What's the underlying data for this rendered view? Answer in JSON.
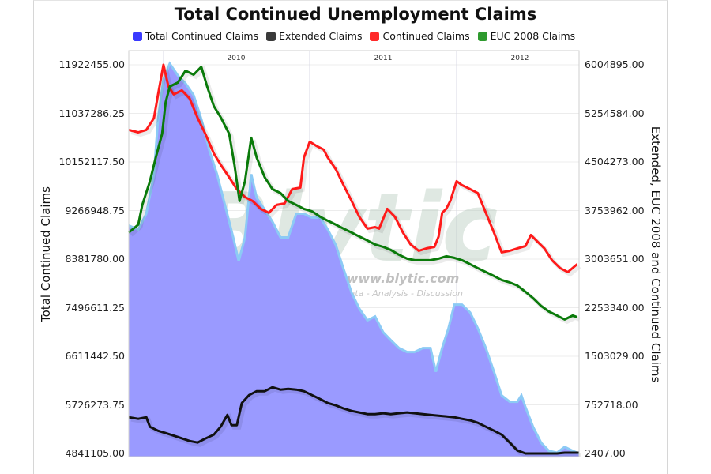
{
  "title": "Total Continued Unemployment Claims",
  "legend": [
    {
      "label": "Total Continued Claims",
      "color": "#3a3aff"
    },
    {
      "label": "Extended Claims",
      "color": "#3a3a3a"
    },
    {
      "label": "Continued Claims",
      "color": "#ff2a2a"
    },
    {
      "label": "EUC 2008 Claims",
      "color": "#2e9a2e"
    }
  ],
  "left_axis": {
    "label": "Total Continued Claims",
    "ticks": [
      "11922455.00",
      "11037286.25",
      "10152117.50",
      "9266948.75",
      "8381780.00",
      "7496611.25",
      "6611442.50",
      "5726273.75",
      "4841105.00"
    ]
  },
  "right_axis": {
    "label": "Extended, EUC 2008 and Continued Claims",
    "ticks": [
      "6004895.00",
      "5254584.00",
      "4504273.00",
      "3753962.00",
      "3003651.00",
      "2253340.00",
      "1503029.00",
      "752718.00",
      "2407.00"
    ]
  },
  "x_labels": [
    {
      "label": "2010",
      "x": 299
    },
    {
      "label": "2011",
      "x": 485
    },
    {
      "label": "2012",
      "x": 658
    }
  ],
  "watermark": {
    "text": "Blytic",
    "url": "www.blytic.com",
    "tagline": "Data - Analysis - Discussion"
  },
  "chart_data": {
    "type": "line",
    "title": "Total Continued Unemployment Claims",
    "xlabel": "",
    "ylabel": "Total Continued Claims",
    "ylabel_right": "Extended, EUC 2008 and Continued Claims",
    "ylim": [
      4841105,
      11922455
    ],
    "ylim_right": [
      2407,
      6004895
    ],
    "x_range": [
      "2009-10",
      "2012-06"
    ],
    "x_ticks": [
      "2010",
      "2011",
      "2012"
    ],
    "grid": true,
    "legend_position": "top",
    "series": [
      {
        "name": "Total Continued Claims",
        "type": "area",
        "axis": "left",
        "color": "#9a9aff",
        "points": [
          [
            0,
            8993000
          ],
          [
            0.021,
            8921000
          ],
          [
            0.039,
            9209000
          ],
          [
            0.056,
            9928000
          ],
          [
            0.065,
            10936000
          ],
          [
            0.077,
            11656000
          ],
          [
            0.091,
            11944000
          ],
          [
            0.109,
            11728000
          ],
          [
            0.126,
            11584000
          ],
          [
            0.144,
            11368000
          ],
          [
            0.161,
            10936000
          ],
          [
            0.179,
            10361000
          ],
          [
            0.196,
            9929000
          ],
          [
            0.214,
            9353000
          ],
          [
            0.232,
            8777000
          ],
          [
            0.244,
            8345000
          ],
          [
            0.258,
            8777000
          ],
          [
            0.272,
            9929000
          ],
          [
            0.284,
            9497000
          ],
          [
            0.302,
            9281000
          ],
          [
            0.319,
            9065000
          ],
          [
            0.337,
            8777000
          ],
          [
            0.354,
            8777000
          ],
          [
            0.372,
            9209000
          ],
          [
            0.389,
            9209000
          ],
          [
            0.407,
            9137000
          ],
          [
            0.425,
            9137000
          ],
          [
            0.442,
            8921000
          ],
          [
            0.46,
            8633000
          ],
          [
            0.477,
            8201000
          ],
          [
            0.495,
            7769000
          ],
          [
            0.512,
            7481000
          ],
          [
            0.53,
            7265000
          ],
          [
            0.547,
            7337000
          ],
          [
            0.565,
            7049000
          ],
          [
            0.582,
            6905000
          ],
          [
            0.6,
            6761000
          ],
          [
            0.618,
            6689000
          ],
          [
            0.635,
            6689000
          ],
          [
            0.653,
            6761000
          ],
          [
            0.67,
            6761000
          ],
          [
            0.682,
            6329000
          ],
          [
            0.696,
            6761000
          ],
          [
            0.71,
            7121000
          ],
          [
            0.723,
            7553000
          ],
          [
            0.74,
            7553000
          ],
          [
            0.758,
            7409000
          ],
          [
            0.775,
            7121000
          ],
          [
            0.793,
            6761000
          ],
          [
            0.811,
            6329000
          ],
          [
            0.828,
            5897000
          ],
          [
            0.846,
            5782000
          ],
          [
            0.863,
            5782000
          ],
          [
            0.872,
            5897000
          ],
          [
            0.881,
            5681000
          ],
          [
            0.898,
            5321000
          ],
          [
            0.916,
            5033000
          ],
          [
            0.933,
            4889000
          ],
          [
            0.951,
            4856000
          ],
          [
            0.968,
            4961000
          ],
          [
            0.986,
            4889000
          ],
          [
            1.0,
            4841000
          ]
        ]
      },
      {
        "name": "Extended Claims",
        "type": "line",
        "axis": "right",
        "color": "#111111",
        "points": [
          [
            0,
            561000
          ],
          [
            0.021,
            537000
          ],
          [
            0.039,
            561000
          ],
          [
            0.047,
            414000
          ],
          [
            0.065,
            353000
          ],
          [
            0.082,
            317000
          ],
          [
            0.109,
            256000
          ],
          [
            0.135,
            195000
          ],
          [
            0.153,
            171000
          ],
          [
            0.17,
            232000
          ],
          [
            0.189,
            293000
          ],
          [
            0.204,
            415000
          ],
          [
            0.219,
            598000
          ],
          [
            0.228,
            439000
          ],
          [
            0.24,
            439000
          ],
          [
            0.251,
            781000
          ],
          [
            0.267,
            903000
          ],
          [
            0.284,
            964000
          ],
          [
            0.302,
            964000
          ],
          [
            0.319,
            1025000
          ],
          [
            0.337,
            988000
          ],
          [
            0.354,
            1000000
          ],
          [
            0.372,
            988000
          ],
          [
            0.389,
            964000
          ],
          [
            0.407,
            903000
          ],
          [
            0.425,
            842000
          ],
          [
            0.442,
            781000
          ],
          [
            0.46,
            744000
          ],
          [
            0.477,
            696000
          ],
          [
            0.495,
            659000
          ],
          [
            0.512,
            635000
          ],
          [
            0.53,
            610000
          ],
          [
            0.547,
            610000
          ],
          [
            0.565,
            623000
          ],
          [
            0.582,
            610000
          ],
          [
            0.6,
            623000
          ],
          [
            0.618,
            635000
          ],
          [
            0.635,
            623000
          ],
          [
            0.653,
            610000
          ],
          [
            0.67,
            598000
          ],
          [
            0.688,
            586000
          ],
          [
            0.705,
            574000
          ],
          [
            0.723,
            561000
          ],
          [
            0.74,
            537000
          ],
          [
            0.758,
            513000
          ],
          [
            0.775,
            476000
          ],
          [
            0.793,
            415000
          ],
          [
            0.811,
            354000
          ],
          [
            0.828,
            293000
          ],
          [
            0.846,
            171000
          ],
          [
            0.863,
            49000
          ],
          [
            0.881,
            2407
          ],
          [
            0.898,
            2407
          ],
          [
            0.916,
            2407
          ],
          [
            0.933,
            2407
          ],
          [
            0.951,
            2407
          ],
          [
            0.968,
            15000
          ],
          [
            0.986,
            15000
          ],
          [
            1.0,
            15000
          ]
        ]
      },
      {
        "name": "Continued Claims",
        "type": "line",
        "axis": "right",
        "color": "#ff1a1a",
        "points": [
          [
            0,
            4999000
          ],
          [
            0.021,
            4962000
          ],
          [
            0.039,
            4999000
          ],
          [
            0.056,
            5182000
          ],
          [
            0.065,
            5548000
          ],
          [
            0.077,
            6005000
          ],
          [
            0.088,
            5670000
          ],
          [
            0.1,
            5548000
          ],
          [
            0.118,
            5609000
          ],
          [
            0.135,
            5487000
          ],
          [
            0.153,
            5182000
          ],
          [
            0.17,
            4938000
          ],
          [
            0.189,
            4633000
          ],
          [
            0.205,
            4450000
          ],
          [
            0.223,
            4267000
          ],
          [
            0.24,
            4084000
          ],
          [
            0.258,
            3962000
          ],
          [
            0.275,
            3901000
          ],
          [
            0.293,
            3779000
          ],
          [
            0.311,
            3718000
          ],
          [
            0.328,
            3840000
          ],
          [
            0.346,
            3864000
          ],
          [
            0.363,
            4084000
          ],
          [
            0.381,
            4108000
          ],
          [
            0.389,
            4572000
          ],
          [
            0.402,
            4816000
          ],
          [
            0.416,
            4755000
          ],
          [
            0.433,
            4694000
          ],
          [
            0.442,
            4572000
          ],
          [
            0.46,
            4389000
          ],
          [
            0.477,
            4145000
          ],
          [
            0.495,
            3901000
          ],
          [
            0.512,
            3657000
          ],
          [
            0.53,
            3474000
          ],
          [
            0.547,
            3498000
          ],
          [
            0.556,
            3474000
          ],
          [
            0.574,
            3779000
          ],
          [
            0.591,
            3657000
          ],
          [
            0.609,
            3413000
          ],
          [
            0.626,
            3230000
          ],
          [
            0.644,
            3132000
          ],
          [
            0.661,
            3169000
          ],
          [
            0.679,
            3193000
          ],
          [
            0.688,
            3352000
          ],
          [
            0.696,
            3718000
          ],
          [
            0.705,
            3779000
          ],
          [
            0.714,
            3901000
          ],
          [
            0.728,
            4206000
          ],
          [
            0.74,
            4145000
          ],
          [
            0.758,
            4084000
          ],
          [
            0.775,
            4023000
          ],
          [
            0.793,
            3718000
          ],
          [
            0.811,
            3413000
          ],
          [
            0.828,
            3108000
          ],
          [
            0.846,
            3132000
          ],
          [
            0.863,
            3169000
          ],
          [
            0.881,
            3206000
          ],
          [
            0.893,
            3376000
          ],
          [
            0.905,
            3291000
          ],
          [
            0.923,
            3169000
          ],
          [
            0.94,
            2986000
          ],
          [
            0.958,
            2864000
          ],
          [
            0.975,
            2803000
          ],
          [
            0.996,
            2925000
          ]
        ]
      },
      {
        "name": "EUC 2008 Claims",
        "type": "line",
        "axis": "right",
        "color": "#0a7a0a",
        "points": [
          [
            0,
            3413000
          ],
          [
            0.021,
            3535000
          ],
          [
            0.03,
            3840000
          ],
          [
            0.047,
            4206000
          ],
          [
            0.06,
            4572000
          ],
          [
            0.074,
            4938000
          ],
          [
            0.082,
            5426000
          ],
          [
            0.091,
            5670000
          ],
          [
            0.109,
            5731000
          ],
          [
            0.126,
            5914000
          ],
          [
            0.144,
            5853000
          ],
          [
            0.161,
            5975000
          ],
          [
            0.174,
            5670000
          ],
          [
            0.189,
            5365000
          ],
          [
            0.205,
            5182000
          ],
          [
            0.223,
            4938000
          ],
          [
            0.235,
            4450000
          ],
          [
            0.246,
            3901000
          ],
          [
            0.258,
            4206000
          ],
          [
            0.272,
            4877000
          ],
          [
            0.284,
            4572000
          ],
          [
            0.302,
            4267000
          ],
          [
            0.319,
            4084000
          ],
          [
            0.337,
            4023000
          ],
          [
            0.354,
            3901000
          ],
          [
            0.372,
            3840000
          ],
          [
            0.389,
            3779000
          ],
          [
            0.407,
            3742000
          ],
          [
            0.425,
            3657000
          ],
          [
            0.442,
            3596000
          ],
          [
            0.46,
            3535000
          ],
          [
            0.477,
            3474000
          ],
          [
            0.495,
            3413000
          ],
          [
            0.512,
            3352000
          ],
          [
            0.53,
            3291000
          ],
          [
            0.547,
            3230000
          ],
          [
            0.565,
            3193000
          ],
          [
            0.582,
            3145000
          ],
          [
            0.6,
            3072000
          ],
          [
            0.618,
            3011000
          ],
          [
            0.635,
            2986000
          ],
          [
            0.653,
            2986000
          ],
          [
            0.67,
            2986000
          ],
          [
            0.688,
            3011000
          ],
          [
            0.705,
            3047000
          ],
          [
            0.723,
            3023000
          ],
          [
            0.74,
            2986000
          ],
          [
            0.758,
            2925000
          ],
          [
            0.775,
            2864000
          ],
          [
            0.793,
            2803000
          ],
          [
            0.811,
            2742000
          ],
          [
            0.828,
            2681000
          ],
          [
            0.846,
            2644000
          ],
          [
            0.863,
            2596000
          ],
          [
            0.881,
            2498000
          ],
          [
            0.898,
            2400000
          ],
          [
            0.916,
            2279000
          ],
          [
            0.933,
            2193000
          ],
          [
            0.951,
            2132000
          ],
          [
            0.968,
            2071000
          ],
          [
            0.986,
            2132000
          ],
          [
            0.996,
            2108000
          ]
        ]
      }
    ]
  }
}
